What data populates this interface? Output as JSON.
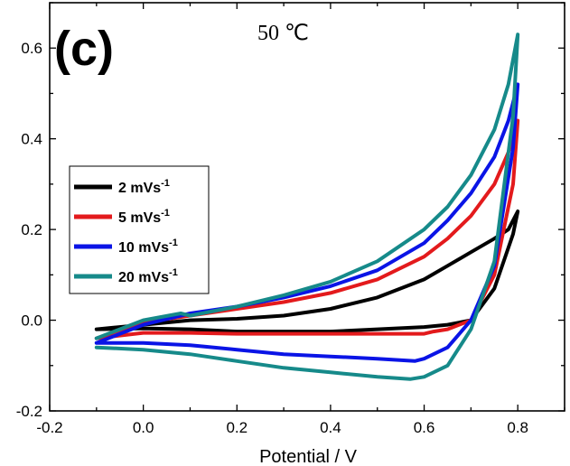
{
  "chart_data": {
    "type": "line",
    "panel_label": "(c)",
    "annotation": "50 ℃",
    "xlabel": "Potential / V",
    "ylabel": "",
    "xlim": [
      -0.2,
      0.9
    ],
    "ylim": [
      -0.2,
      0.7
    ],
    "xticks": [
      -0.2,
      0.0,
      0.2,
      0.4,
      0.6,
      0.8
    ],
    "xtick_labels": [
      "-0.2",
      "0.0",
      "0.2",
      "0.4",
      "0.6",
      "0.8"
    ],
    "yticks": [
      -0.2,
      0.0,
      0.2,
      0.4,
      0.6
    ],
    "ytick_labels": [
      "-0.2",
      "0.0",
      "0.2",
      "0.4",
      "0.6"
    ],
    "grid": false,
    "legend_position": "middle-left",
    "series": [
      {
        "name": "2 mVs-1",
        "legend_main": "2 mVs",
        "legend_sup": "-1",
        "color": "#000000",
        "x": [
          -0.1,
          0.0,
          0.1,
          0.2,
          0.3,
          0.4,
          0.5,
          0.6,
          0.65,
          0.7,
          0.75,
          0.78,
          0.8,
          0.79,
          0.75,
          0.7,
          0.65,
          0.6,
          0.5,
          0.4,
          0.3,
          0.2,
          0.1,
          0.0,
          -0.1,
          -0.1
        ],
        "y": [
          -0.02,
          -0.01,
          0.0,
          0.003,
          0.01,
          0.025,
          0.05,
          0.09,
          0.12,
          0.15,
          0.18,
          0.2,
          0.24,
          0.19,
          0.07,
          0.0,
          -0.01,
          -0.015,
          -0.02,
          -0.025,
          -0.025,
          -0.025,
          -0.02,
          -0.018,
          -0.02,
          -0.02
        ]
      },
      {
        "name": "5 mVs-1",
        "legend_main": "5 mVs",
        "legend_sup": "-1",
        "color": "#e31a1c",
        "x": [
          -0.1,
          0.0,
          0.1,
          0.2,
          0.3,
          0.4,
          0.5,
          0.6,
          0.65,
          0.7,
          0.75,
          0.78,
          0.8,
          0.79,
          0.75,
          0.7,
          0.65,
          0.62,
          0.6,
          0.5,
          0.4,
          0.3,
          0.2,
          0.1,
          0.0,
          -0.1,
          -0.1
        ],
        "y": [
          -0.04,
          -0.005,
          0.01,
          0.025,
          0.04,
          0.06,
          0.09,
          0.14,
          0.18,
          0.23,
          0.3,
          0.37,
          0.44,
          0.3,
          0.1,
          0.0,
          -0.02,
          -0.025,
          -0.03,
          -0.03,
          -0.03,
          -0.03,
          -0.03,
          -0.028,
          -0.028,
          -0.04,
          -0.04
        ]
      },
      {
        "name": "10 mVs-1",
        "legend_main": "10 mVs",
        "legend_sup": "-1",
        "color": "#0a14e6",
        "x": [
          -0.1,
          0.0,
          0.1,
          0.2,
          0.3,
          0.4,
          0.5,
          0.6,
          0.65,
          0.7,
          0.75,
          0.78,
          0.8,
          0.79,
          0.75,
          0.7,
          0.65,
          0.6,
          0.58,
          0.5,
          0.4,
          0.3,
          0.2,
          0.1,
          0.0,
          -0.1,
          -0.1
        ],
        "y": [
          -0.05,
          -0.01,
          0.015,
          0.03,
          0.05,
          0.075,
          0.11,
          0.17,
          0.22,
          0.28,
          0.36,
          0.44,
          0.52,
          0.38,
          0.12,
          0.0,
          -0.06,
          -0.085,
          -0.09,
          -0.085,
          -0.08,
          -0.075,
          -0.065,
          -0.055,
          -0.05,
          -0.05,
          -0.05
        ]
      },
      {
        "name": "20 mVs-1",
        "legend_main": "20 mVs",
        "legend_sup": "-1",
        "color": "#168a8a",
        "x": [
          -0.1,
          0.0,
          0.08,
          0.1,
          0.2,
          0.3,
          0.4,
          0.5,
          0.6,
          0.65,
          0.7,
          0.75,
          0.78,
          0.8,
          0.79,
          0.75,
          0.7,
          0.65,
          0.6,
          0.57,
          0.5,
          0.4,
          0.3,
          0.2,
          0.1,
          0.0,
          -0.1,
          -0.1
        ],
        "y": [
          -0.04,
          0.0,
          0.015,
          0.01,
          0.03,
          0.055,
          0.085,
          0.13,
          0.2,
          0.25,
          0.32,
          0.42,
          0.52,
          0.63,
          0.45,
          0.13,
          -0.02,
          -0.1,
          -0.125,
          -0.13,
          -0.125,
          -0.115,
          -0.105,
          -0.09,
          -0.075,
          -0.065,
          -0.06,
          -0.06
        ]
      }
    ]
  }
}
